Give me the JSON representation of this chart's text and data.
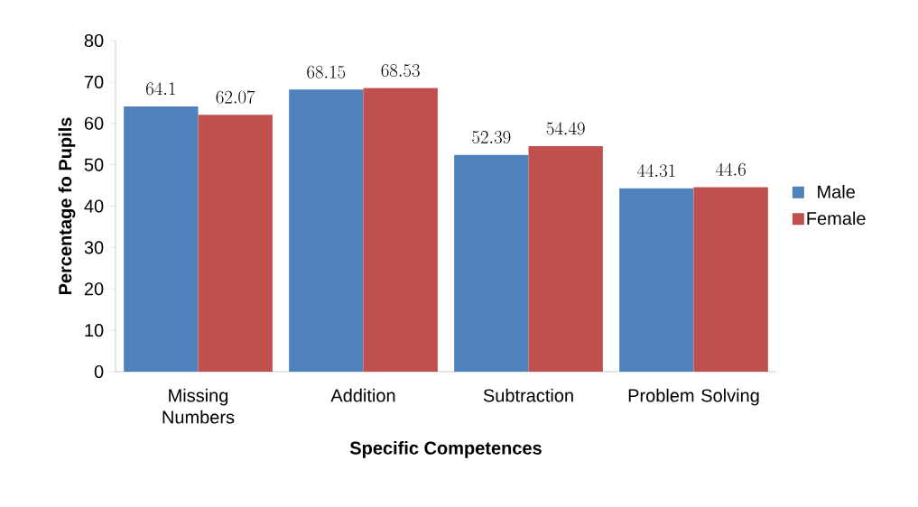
{
  "chart_data": {
    "type": "bar",
    "xlabel": "Specific Competences",
    "ylabel": "Percentage fo Pupils",
    "categories": [
      "Missing Numbers",
      "Addition",
      "Subtraction",
      "Problem Solving"
    ],
    "series": [
      {
        "name": "Male",
        "color": "#4f81bd",
        "values": [
          64.1,
          68.15,
          52.39,
          44.31
        ]
      },
      {
        "name": "Female",
        "color": "#c0504d",
        "values": [
          62.07,
          68.53,
          54.49,
          44.6
        ]
      }
    ],
    "ylim": [
      0,
      80
    ],
    "yticks": [
      0,
      10,
      20,
      30,
      40,
      50,
      60,
      70,
      80
    ],
    "data_labels": true,
    "legend": "right",
    "grid": false
  }
}
